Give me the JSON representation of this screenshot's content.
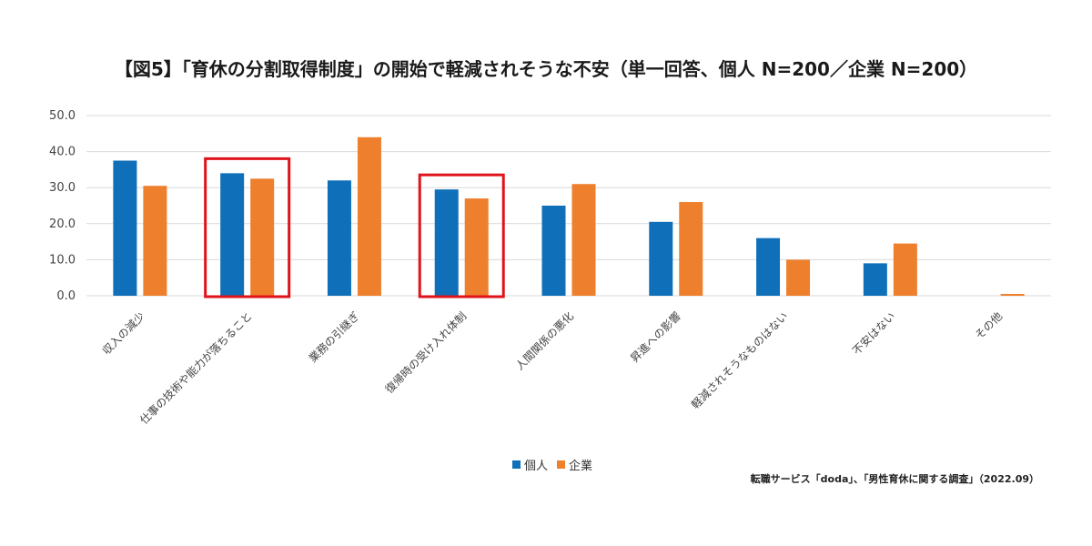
{
  "chart_data": {
    "type": "bar",
    "title": "【図5】「育休の分割取得制度」の開始で軽減されそうな不安（単一回答、個人 N=200／企業 N=200）",
    "categories": [
      "収入の減少",
      "仕事の技術や能力が落ちること",
      "業務の引継ぎ",
      "復帰時の受け入れ体制",
      "人間関係の悪化",
      "昇進への影響",
      "軽減されそうなものはない",
      "不安はない",
      "その他"
    ],
    "series": [
      {
        "name": "個人",
        "values": [
          37.5,
          34.0,
          32.0,
          29.5,
          25.0,
          20.5,
          16.0,
          9.0,
          0.0
        ]
      },
      {
        "name": "企業",
        "values": [
          30.5,
          32.5,
          44.0,
          27.0,
          31.0,
          26.0,
          10.0,
          14.5,
          0.5
        ]
      }
    ],
    "yticks": [
      "0.0",
      "10.0",
      "20.0",
      "30.0",
      "40.0",
      "50.0"
    ],
    "ylim": [
      0,
      50
    ],
    "grid": true,
    "legend_position": "bottom",
    "highlighted_categories": [
      1,
      3
    ]
  },
  "colors": {
    "series_1": "#0f6fb8",
    "series_2": "#ee7f2d",
    "highlight": "#e0121a",
    "grid": "#d9d9d9"
  },
  "source": "転職サービス「doda」、「男性育休に関する調査」（2022.09）"
}
